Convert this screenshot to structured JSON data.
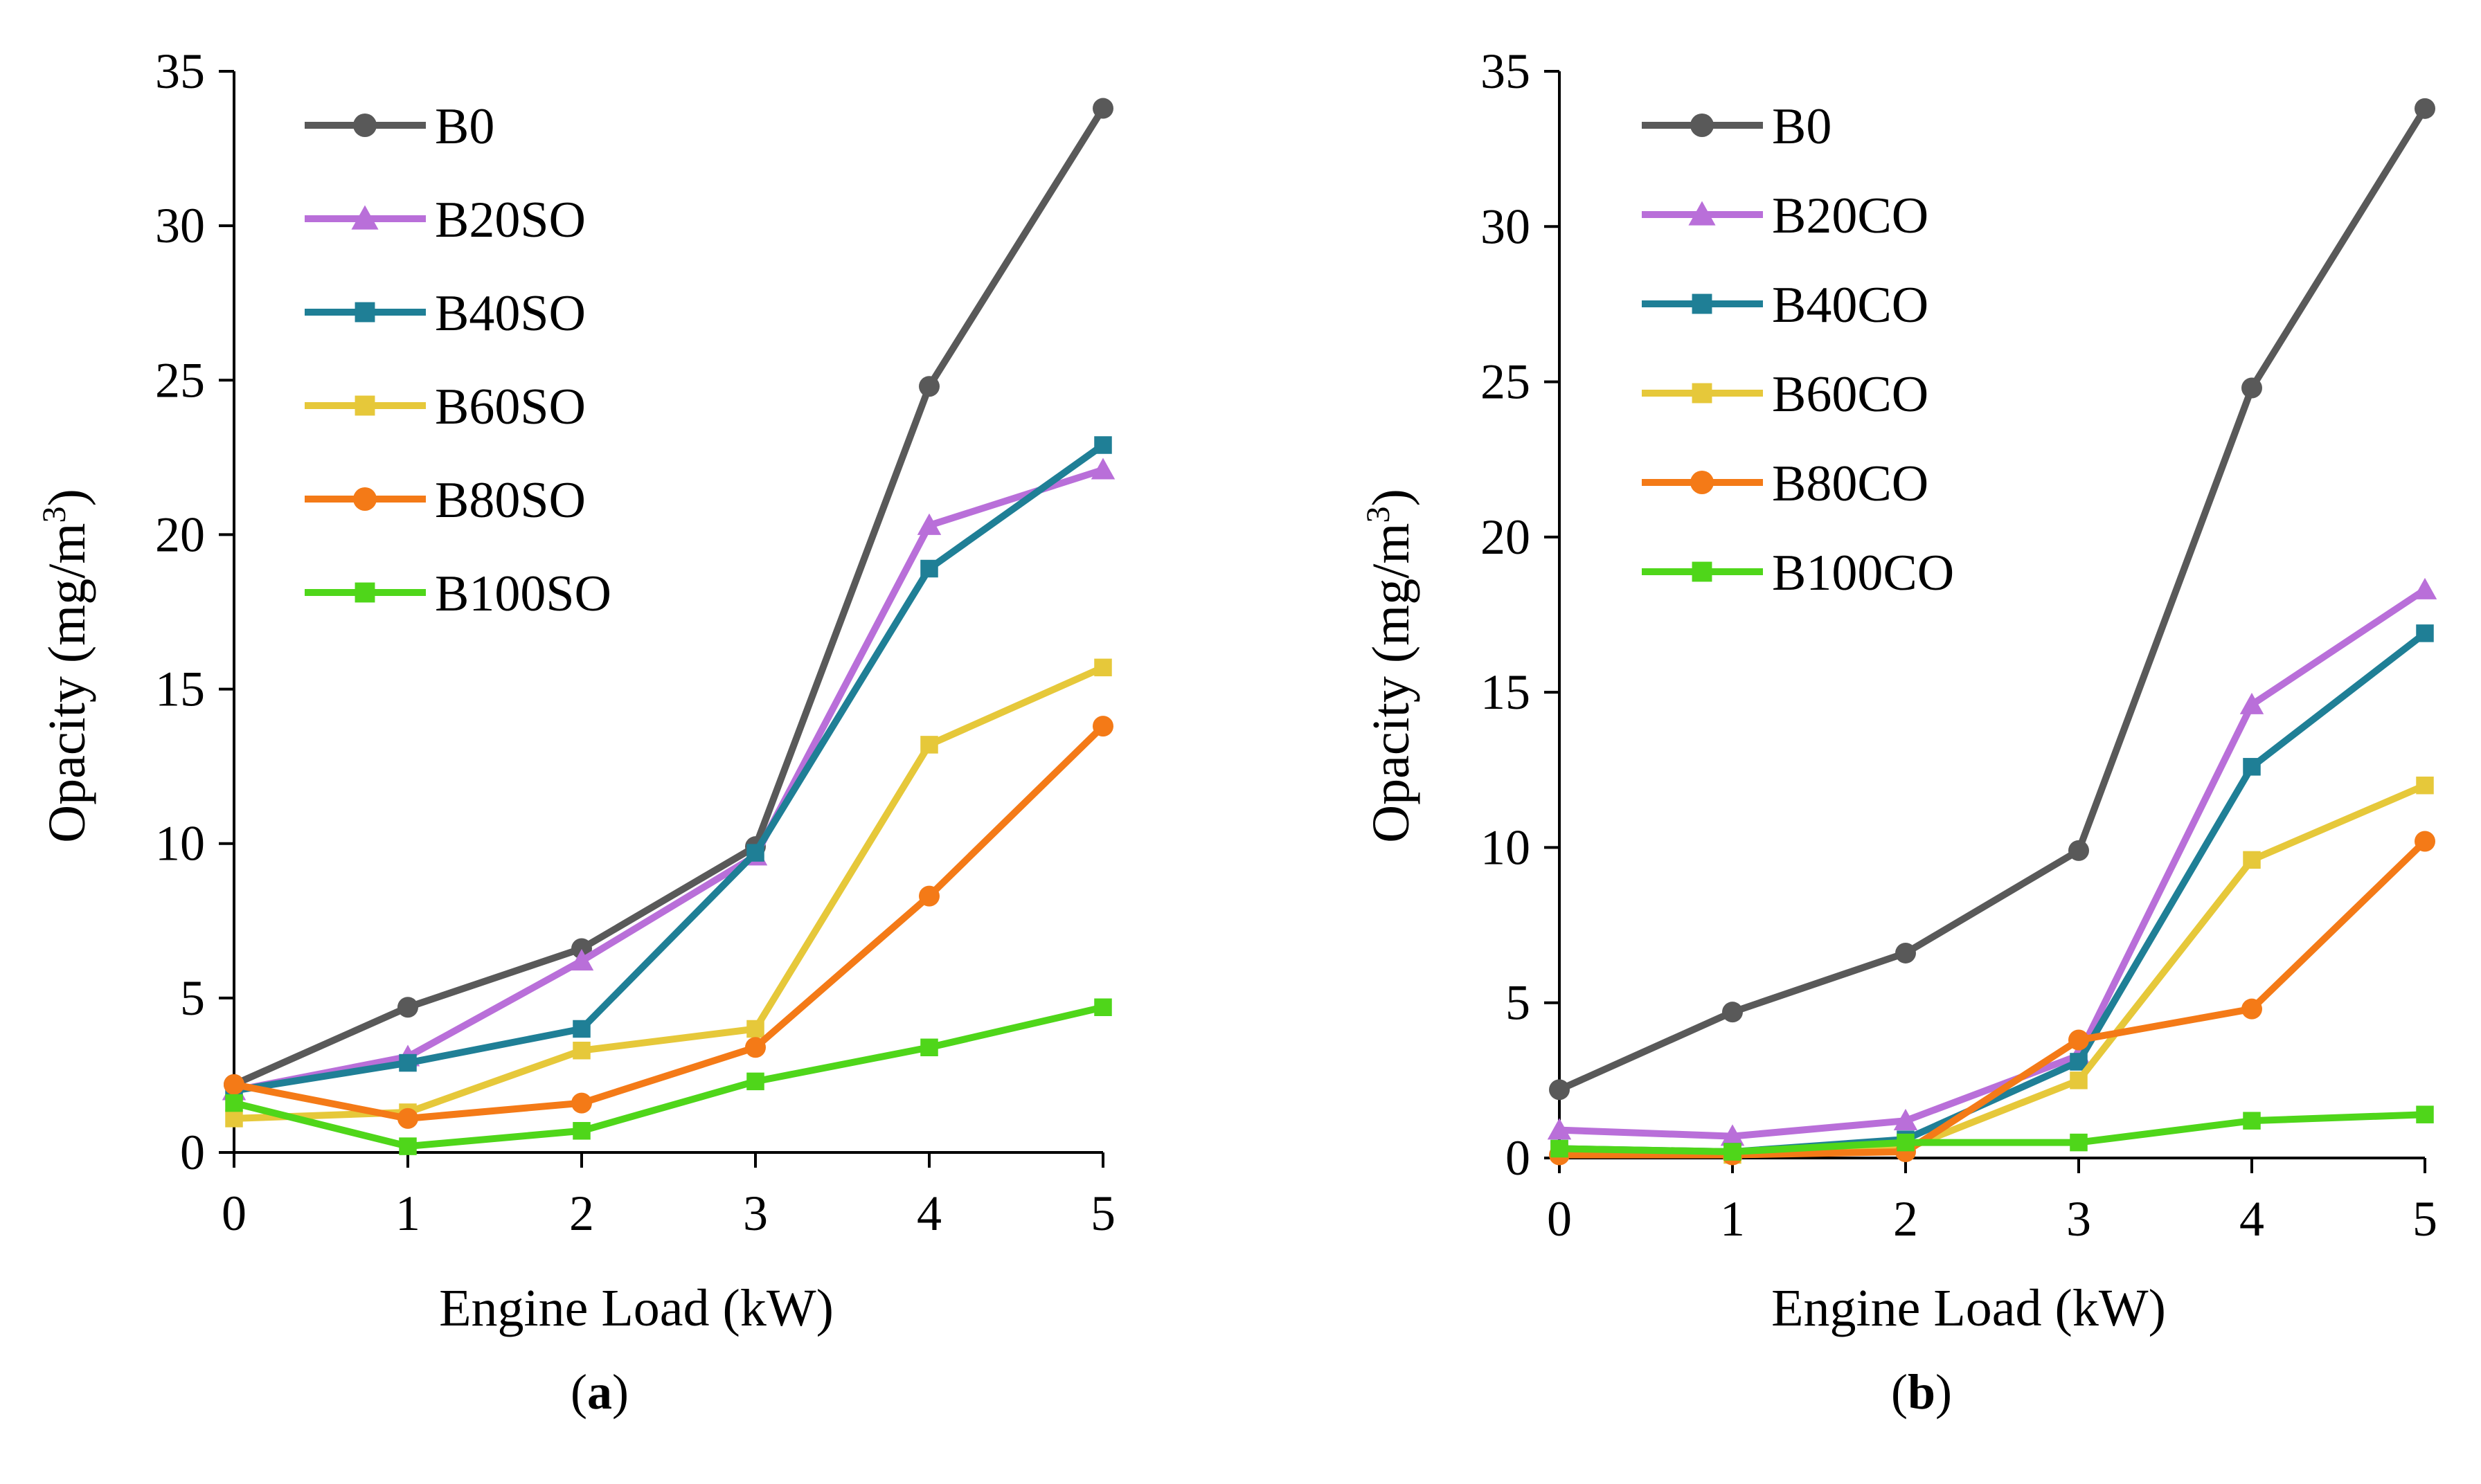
{
  "chart_data": [
    {
      "type": "line",
      "panel_label": "a",
      "xlabel": "Engine Load (kW)",
      "ylabel_main": "Opacity (mg/m",
      "ylabel_sup": "3",
      "ylabel_close": ")",
      "x": [
        0,
        1,
        2,
        3,
        4,
        5
      ],
      "x_tick_labels": [
        "0",
        "1",
        "2",
        "3",
        "4",
        "5"
      ],
      "ylim": [
        0,
        35
      ],
      "y_tick_labels": [
        "0",
        "5",
        "10",
        "15",
        "20",
        "25",
        "30",
        "35"
      ],
      "legend_position": "top-left",
      "series": [
        {
          "name": "B0",
          "color": "#595959",
          "marker": "circle",
          "values": [
            2.2,
            4.7,
            6.6,
            9.9,
            24.8,
            33.8
          ]
        },
        {
          "name": "B20SO",
          "color": "#B96FD9",
          "marker": "triangle",
          "values": [
            2.0,
            3.1,
            6.2,
            9.6,
            20.3,
            22.1
          ]
        },
        {
          "name": "B40SO",
          "color": "#1F7F96",
          "marker": "square",
          "values": [
            2.0,
            2.9,
            4.0,
            9.7,
            18.9,
            22.9
          ]
        },
        {
          "name": "B60SO",
          "color": "#E6C83A",
          "marker": "square",
          "values": [
            1.1,
            1.3,
            3.3,
            4.0,
            13.2,
            15.7
          ]
        },
        {
          "name": "B80SO",
          "color": "#F47A17",
          "marker": "circle",
          "values": [
            2.2,
            1.1,
            1.6,
            3.4,
            8.3,
            13.8
          ]
        },
        {
          "name": "B100SO",
          "color": "#4FD61A",
          "marker": "square",
          "values": [
            1.6,
            0.2,
            0.7,
            2.3,
            3.4,
            4.7
          ]
        }
      ]
    },
    {
      "type": "line",
      "panel_label": "b",
      "xlabel": "Engine Load (kW)",
      "ylabel_main": "Opacity (mg/m",
      "ylabel_sup": "3",
      "ylabel_close": ")",
      "x": [
        0,
        1,
        2,
        3,
        4,
        5
      ],
      "x_tick_labels": [
        "0",
        "1",
        "2",
        "3",
        "4",
        "5"
      ],
      "ylim": [
        0,
        35
      ],
      "y_tick_labels": [
        "0",
        "5",
        "10",
        "15",
        "20",
        "25",
        "30",
        "35"
      ],
      "legend_position": "top-left",
      "series": [
        {
          "name": "B0",
          "color": "#595959",
          "marker": "circle",
          "values": [
            2.2,
            4.7,
            6.6,
            9.9,
            24.8,
            33.8
          ]
        },
        {
          "name": "B20CO",
          "color": "#B96FD9",
          "marker": "triangle",
          "values": [
            0.9,
            0.7,
            1.2,
            3.3,
            14.6,
            18.3
          ]
        },
        {
          "name": "B40CO",
          "color": "#1F7F96",
          "marker": "square",
          "values": [
            0.3,
            0.2,
            0.6,
            3.1,
            12.6,
            16.9
          ]
        },
        {
          "name": "B60CO",
          "color": "#E6C83A",
          "marker": "square",
          "values": [
            0.2,
            0.1,
            0.3,
            2.5,
            9.6,
            12.0
          ]
        },
        {
          "name": "B80CO",
          "color": "#F47A17",
          "marker": "circle",
          "values": [
            0.1,
            0.1,
            0.2,
            3.8,
            4.8,
            10.2
          ]
        },
        {
          "name": "B100CO",
          "color": "#4FD61A",
          "marker": "square",
          "values": [
            0.3,
            0.2,
            0.5,
            0.5,
            1.2,
            1.4
          ]
        }
      ]
    }
  ]
}
